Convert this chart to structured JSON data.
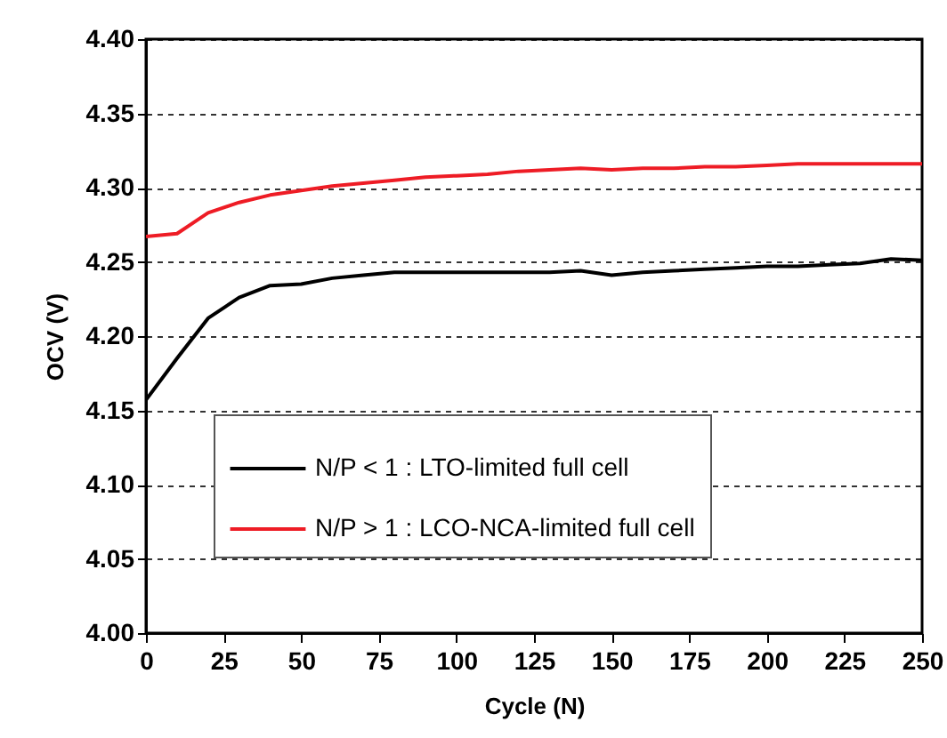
{
  "chart_data": {
    "type": "line",
    "xlabel": "Cycle (N)",
    "ylabel": "OCV (V)",
    "x": [
      0,
      10,
      20,
      30,
      40,
      50,
      60,
      70,
      80,
      90,
      100,
      110,
      120,
      130,
      140,
      150,
      160,
      170,
      180,
      190,
      200,
      210,
      220,
      230,
      240,
      250
    ],
    "series": [
      {
        "name": "N/P < 1 : LTO-limited full cell",
        "color": "#000000",
        "values": [
          4.157,
          4.185,
          4.212,
          4.226,
          4.234,
          4.235,
          4.239,
          4.241,
          4.243,
          4.243,
          4.243,
          4.243,
          4.243,
          4.243,
          4.244,
          4.241,
          4.243,
          4.244,
          4.245,
          4.246,
          4.247,
          4.247,
          4.248,
          4.249,
          4.252,
          4.251
        ]
      },
      {
        "name": "N/P > 1 : LCO-NCA-limited full cell",
        "color": "#ee1c25",
        "values": [
          4.267,
          4.269,
          4.283,
          4.29,
          4.295,
          4.298,
          4.301,
          4.303,
          4.305,
          4.307,
          4.308,
          4.309,
          4.311,
          4.312,
          4.313,
          4.312,
          4.313,
          4.313,
          4.314,
          4.314,
          4.315,
          4.316,
          4.316,
          4.316,
          4.316,
          4.316
        ]
      }
    ],
    "xlim": [
      0,
      250
    ],
    "xticks": [
      0,
      25,
      50,
      75,
      100,
      125,
      150,
      175,
      200,
      225,
      250
    ],
    "ylim": [
      4.0,
      4.4
    ],
    "yticks": [
      {
        "value": 4.0,
        "label": "4.00"
      },
      4.05,
      {
        "value": 4.1,
        "label": "4.10"
      },
      4.15,
      {
        "value": 4.2,
        "label": "4.20"
      },
      4.25,
      {
        "value": 4.3,
        "label": "4.30"
      },
      4.35,
      {
        "value": 4.4,
        "label": "4.40"
      }
    ],
    "grid": "y",
    "legend": "left",
    "line_style": "solid",
    "marker": "none"
  }
}
